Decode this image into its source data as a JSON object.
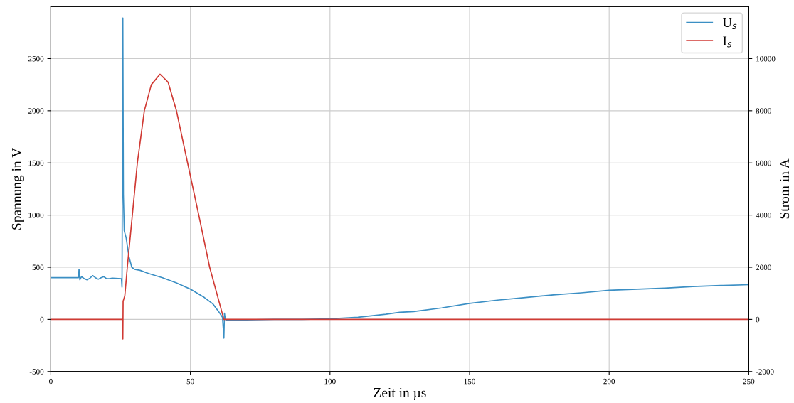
{
  "chart_data": {
    "type": "line",
    "xlabel": "Zeit in µs",
    "ylabel": "Spannung in V",
    "y2label": "Strom in A",
    "xlim": [
      0,
      250
    ],
    "xticks": [
      0,
      50,
      100,
      150,
      200,
      250
    ],
    "ylim": [
      -500,
      3000
    ],
    "yticks": [
      -500,
      0,
      500,
      1000,
      1500,
      2000,
      2500
    ],
    "y2lim": [
      -2000,
      12000
    ],
    "y2ticks": [
      -2000,
      0,
      2000,
      4000,
      6000,
      8000,
      10000
    ],
    "grid": true,
    "legend": "top right",
    "series": [
      {
        "name": "U$_{s}$",
        "color": "#3b8fc4",
        "x": [
          0,
          5,
          9.9,
          10.1,
          10.4,
          11,
          12,
          13,
          14,
          15,
          16,
          17,
          18,
          19,
          20,
          21,
          22,
          25.3,
          25.5,
          25.8,
          26.0,
          26.3,
          27,
          28,
          29,
          30,
          32,
          35,
          40,
          45,
          50,
          55,
          58,
          60,
          61.5,
          62,
          62.2,
          62.5,
          63,
          70,
          80,
          90,
          100,
          110,
          120,
          125,
          130,
          140,
          150,
          160,
          170,
          180,
          190,
          200,
          210,
          220,
          230,
          240,
          250
        ],
        "values": [
          400,
          400,
          400,
          480,
          380,
          410,
          390,
          380,
          395,
          420,
          400,
          385,
          400,
          410,
          390,
          390,
          395,
          390,
          310,
          2890,
          1200,
          850,
          780,
          600,
          500,
          480,
          470,
          440,
          400,
          350,
          290,
          210,
          150,
          80,
          20,
          -180,
          60,
          0,
          -10,
          -5,
          0,
          0,
          5,
          20,
          50,
          68,
          75,
          110,
          153,
          185,
          210,
          235,
          255,
          279,
          290,
          300,
          315,
          325,
          333
        ]
      },
      {
        "name": "I$_{s}$",
        "color": "#d03a34",
        "axis": "y2",
        "x": [
          0,
          10,
          25.7,
          25.8,
          25.9,
          26.5,
          27.4,
          29.2,
          31.0,
          33.5,
          36,
          39.1,
          42,
          45,
          49,
          53,
          56.9,
          62,
          70,
          100,
          150,
          200,
          250
        ],
        "values": [
          0,
          0,
          0,
          -750,
          700,
          900,
          2000,
          4000,
          6000,
          8000,
          9000,
          9400,
          9100,
          8000,
          6000,
          4000,
          2000,
          0,
          0,
          0,
          0,
          0,
          0
        ]
      }
    ]
  }
}
